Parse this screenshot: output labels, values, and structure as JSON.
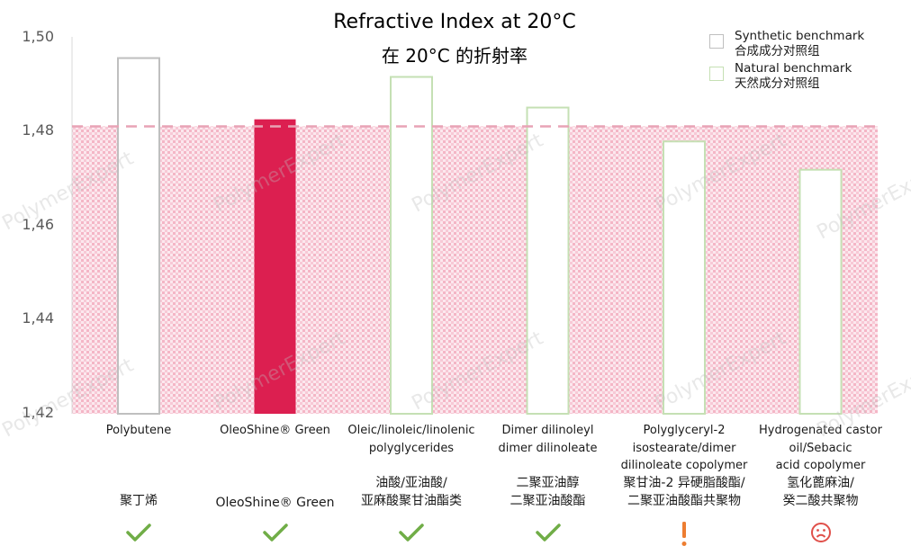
{
  "chart_data": {
    "type": "bar",
    "title": "Refractive Index at 20°C",
    "subtitle": "在 20°C 的折射率",
    "ylim": [
      1.42,
      1.5
    ],
    "yticks": [
      "1,42",
      "1,44",
      "1,46",
      "1,48",
      "1,50"
    ],
    "ytick_values": [
      1.42,
      1.44,
      1.46,
      1.48,
      1.5
    ],
    "reference_line": 1.481,
    "categories": [
      "Polybutene",
      "OleoShine® Green",
      "Oleic/linoleic/linolenic polyglycerides",
      "Dimer dilinoleyl dimer dilinoleate",
      "Polyglyceryl-2 isostearate/dimer dilinoleate copolymer",
      "Hydrogenated castor oil/Sebacic acid copolymer"
    ],
    "values": [
      1.4955,
      1.4825,
      1.4915,
      1.485,
      1.4778,
      1.4718
    ],
    "bar_styles": [
      "synthetic",
      "highlight",
      "natural",
      "natural",
      "natural",
      "natural"
    ],
    "legend": [
      {
        "label": "Synthetic benchmark",
        "label_cn": "合成成分对照组",
        "style": "synthetic"
      },
      {
        "label": "Natural benchmark",
        "label_cn": "天然成分对照组",
        "style": "natural"
      }
    ],
    "legend_position": "top-right",
    "grid": false
  },
  "labels_en": [
    [
      "Polybutene"
    ],
    [
      "OleoShine® Green"
    ],
    [
      "Oleic/linoleic/linolenic",
      "polyglycerides"
    ],
    [
      "Dimer dilinoleyl",
      "dimer dilinoleate"
    ],
    [
      "Polyglyceryl-2",
      "isostearate/dimer",
      "dilinoleate copolymer"
    ],
    [
      "Hydrogenated castor",
      "oil/Sebacic",
      "acid copolymer"
    ]
  ],
  "labels_cn": [
    [
      "聚丁烯"
    ],
    [
      "OleoShine® Green"
    ],
    [
      "油酸/亚油酸/",
      "亚麻酸聚甘油酯类"
    ],
    [
      "二聚亚油醇",
      "二聚亚油酸酯"
    ],
    [
      "聚甘油-2 异硬脂酸酯/",
      "二聚亚油酸酯共聚物"
    ],
    [
      "氢化蓖麻油/",
      "癸二酸共聚物"
    ]
  ],
  "marks": [
    "check",
    "check",
    "check",
    "check",
    "exclamation",
    "frown"
  ],
  "watermark_text": "PolymerExpert",
  "colors": {
    "synthetic": "#bfbfbf",
    "natural": "#c5e0b4",
    "highlight": "#dc1f50",
    "band": "#f4b6c6",
    "refline": "#e8a3b5",
    "check": "#70ad47",
    "exclamation": "#ed7d31",
    "frown": "#e0504a",
    "axis": "#d9d9d9"
  }
}
